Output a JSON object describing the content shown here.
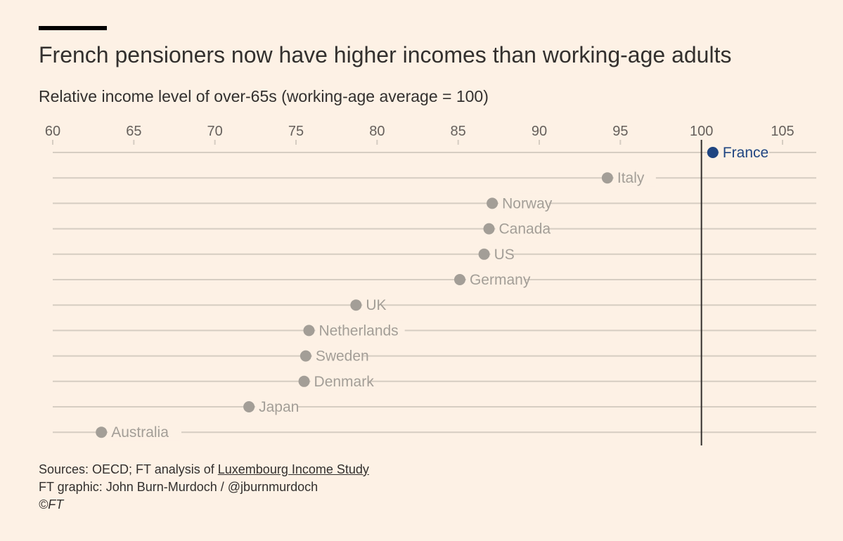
{
  "title": "French pensioners now have higher incomes than working-age adults",
  "subtitle": "Relative income level of over-65s (working-age average = 100)",
  "footer": {
    "sources_prefix": "Sources: OECD; FT analysis of ",
    "sources_link": "Luxembourg Income Study",
    "credit": "FT graphic: John Burn-Murdoch / @jburnmurdoch",
    "copyright": "©FT"
  },
  "colors": {
    "background": "#fdf1e5",
    "highlight": "#1f4581",
    "muted_dot": "#a39e97",
    "muted_label": "#a39e97",
    "gridline": "#d6cdc2",
    "reference_line": "#33302e",
    "tick_label": "#66605c"
  },
  "chart_data": {
    "type": "scatter",
    "title": "French pensioners now have higher incomes than working-age adults",
    "subtitle": "Relative income level of over-65s (working-age average = 100)",
    "xlim": [
      60,
      107
    ],
    "x_ticks": [
      60,
      65,
      70,
      75,
      80,
      85,
      90,
      95,
      100,
      105
    ],
    "reference_line": 100,
    "grid": true,
    "categories": [
      "France",
      "Italy",
      "Norway",
      "Canada",
      "US",
      "Germany",
      "UK",
      "Netherlands",
      "Sweden",
      "Denmark",
      "Japan",
      "Australia"
    ],
    "values": [
      100.7,
      94.2,
      87.1,
      86.9,
      86.6,
      85.1,
      78.7,
      75.8,
      75.6,
      75.5,
      72.1,
      63.0
    ],
    "highlight": "France"
  }
}
